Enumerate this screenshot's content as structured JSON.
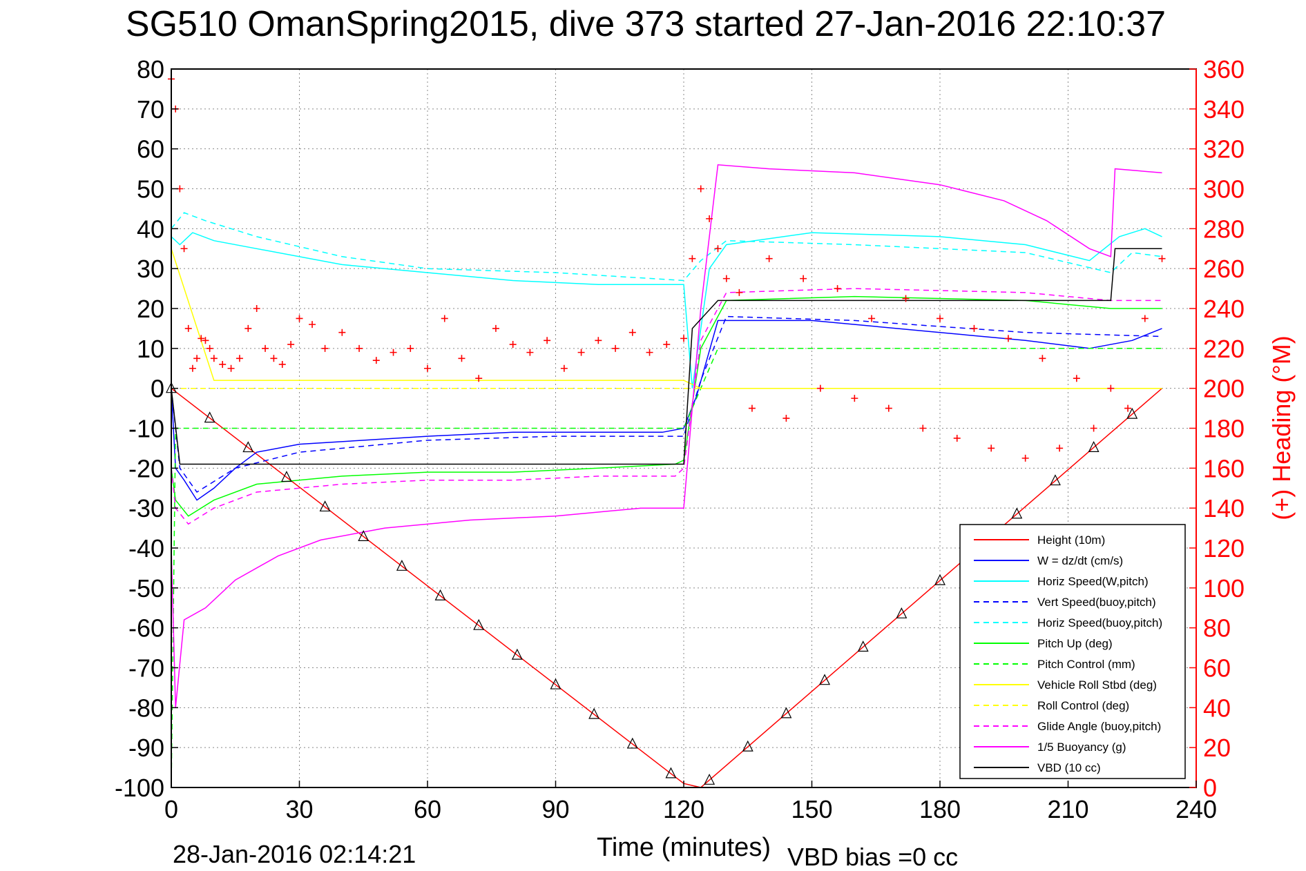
{
  "chart_data": {
    "type": "line",
    "title": "SG510 OmanSpring2015, dive 373 started 27-Jan-2016 22:10:37",
    "xlabel": "Time (minutes)",
    "ylabel_right": "(+) Heading (°M)",
    "footer_date": "28-Jan-2016 02:14:21",
    "footer_bias": "VBD bias =0 cc",
    "xlim": [
      0,
      240
    ],
    "ylim": [
      -100,
      80
    ],
    "ylim_right": [
      0,
      360
    ],
    "x_ticks": [
      "0",
      "30",
      "60",
      "90",
      "120",
      "150",
      "180",
      "210",
      "240"
    ],
    "y_ticks": [
      "80",
      "70",
      "60",
      "50",
      "40",
      "30",
      "20",
      "10",
      "0",
      "-10",
      "-20",
      "-30",
      "-40",
      "-50",
      "-60",
      "-70",
      "-80",
      "-90",
      "-100"
    ],
    "y_right_ticks": [
      "360",
      "340",
      "320",
      "300",
      "280",
      "260",
      "240",
      "220",
      "200",
      "180",
      "160",
      "140",
      "120",
      "100",
      "80",
      "60",
      "40",
      "20",
      "0"
    ],
    "grid": true,
    "legend_position": "bottom-right",
    "series": [
      {
        "name": "Height (10m)",
        "color": "#ff0000",
        "dash": "",
        "x": [
          0,
          120,
          124,
          232
        ],
        "y": [
          0,
          -99,
          -100,
          0
        ]
      },
      {
        "name": "W = dz/dt (cm/s)",
        "color": "#0000ff",
        "dash": "",
        "x": [
          0,
          1,
          3,
          6,
          10,
          15,
          20,
          30,
          45,
          60,
          80,
          100,
          115,
          120,
          123,
          128,
          150,
          180,
          200,
          215,
          225,
          232
        ],
        "y": [
          0,
          -20,
          -23,
          -28,
          -25,
          -20,
          -16,
          -14,
          -13,
          -12,
          -11,
          -11,
          -11,
          -10,
          -2,
          17,
          17,
          14,
          12,
          10,
          12,
          15
        ]
      },
      {
        "name": "Horiz Speed(W,pitch)",
        "color": "#00ffff",
        "dash": "",
        "x": [
          0,
          2,
          5,
          10,
          20,
          40,
          60,
          80,
          100,
          115,
          120,
          122,
          126,
          130,
          150,
          180,
          200,
          215,
          222,
          228,
          232
        ],
        "y": [
          38,
          36,
          39,
          37,
          35,
          31,
          29,
          27,
          26,
          26,
          26,
          0,
          30,
          36,
          39,
          38,
          36,
          32,
          38,
          40,
          38
        ]
      },
      {
        "name": "Vert Speed(buoy,pitch)",
        "color": "#0000ff",
        "dash": "8,6",
        "x": [
          0,
          2,
          6,
          15,
          30,
          60,
          90,
          120,
          124,
          130,
          160,
          200,
          232
        ],
        "y": [
          0,
          -20,
          -26,
          -20,
          -16,
          -13,
          -12,
          -12,
          2,
          18,
          17,
          14,
          13
        ]
      },
      {
        "name": "Horiz Speed(buoy,pitch)",
        "color": "#00ffff",
        "dash": "8,6",
        "x": [
          0,
          3,
          8,
          20,
          40,
          60,
          90,
          120,
          124,
          130,
          160,
          200,
          220,
          225,
          232
        ],
        "y": [
          40,
          44,
          42,
          38,
          33,
          30,
          29,
          27,
          32,
          37,
          36,
          34,
          29,
          34,
          33
        ]
      },
      {
        "name": "Pitch Up (deg)",
        "color": "#00ff00",
        "dash": "",
        "x": [
          0,
          1,
          4,
          10,
          20,
          40,
          60,
          80,
          100,
          118,
          120,
          124,
          130,
          160,
          200,
          220,
          232
        ],
        "y": [
          -20,
          -28,
          -32,
          -28,
          -24,
          -22,
          -21,
          -21,
          -20,
          -19,
          -18,
          10,
          22,
          23,
          22,
          20,
          20
        ]
      },
      {
        "name": "Pitch Control (mm)",
        "color": "#00ff00",
        "dash": "8,6",
        "x": [
          0,
          1,
          2,
          120,
          124,
          128,
          232
        ],
        "y": [
          -100,
          -10,
          -10,
          -10,
          0,
          10,
          10
        ]
      },
      {
        "name": "Vehicle Roll Stbd (deg)",
        "color": "#ffff00",
        "dash": "",
        "x": [
          0,
          10,
          20,
          40,
          60,
          80,
          100,
          120,
          124,
          130,
          160,
          190,
          220,
          232
        ],
        "y": [
          35,
          2,
          2,
          2,
          2,
          2,
          2,
          2,
          0,
          0,
          0,
          0,
          0,
          0
        ]
      },
      {
        "name": "Roll Control (deg)",
        "color": "#ffff00",
        "dash": "8,6",
        "x": [
          0,
          120,
          124,
          232
        ],
        "y": [
          0,
          0,
          0,
          0
        ]
      },
      {
        "name": "Glide Angle (buoy,pitch)",
        "color": "#ff00ff",
        "dash": "8,6",
        "x": [
          0,
          1,
          4,
          10,
          20,
          40,
          60,
          80,
          100,
          118,
          120,
          124,
          130,
          160,
          200,
          220,
          232
        ],
        "y": [
          -20,
          -30,
          -34,
          -30,
          -26,
          -24,
          -23,
          -23,
          -22,
          -22,
          -20,
          12,
          24,
          25,
          24,
          22,
          22
        ]
      },
      {
        "name": "1/5 Buoyancy (g)",
        "color": "#ff00ff",
        "dash": "",
        "x": [
          0,
          1,
          3,
          8,
          15,
          25,
          35,
          50,
          70,
          90,
          110,
          120,
          124,
          128,
          140,
          160,
          180,
          195,
          205,
          215,
          220,
          221,
          232
        ],
        "y": [
          -40,
          -80,
          -58,
          -55,
          -48,
          -42,
          -38,
          -35,
          -33,
          -32,
          -30,
          -30,
          20,
          56,
          55,
          54,
          51,
          47,
          42,
          35,
          33,
          55,
          54
        ]
      },
      {
        "name": "VBD (10 cc)",
        "color": "#000000",
        "dash": "",
        "x": [
          0,
          2,
          120,
          122,
          128,
          220,
          221,
          232
        ],
        "y": [
          0,
          -19,
          -19,
          15,
          22,
          22,
          35,
          35
        ]
      }
    ],
    "heading_points": {
      "name": "(+) Heading (°M)",
      "color": "#ff0000",
      "x": [
        0,
        1,
        2,
        3,
        4,
        5,
        6,
        7,
        8,
        9,
        10,
        12,
        14,
        16,
        18,
        20,
        22,
        24,
        26,
        28,
        30,
        33,
        36,
        40,
        44,
        48,
        52,
        56,
        60,
        64,
        68,
        72,
        76,
        80,
        84,
        88,
        92,
        96,
        100,
        104,
        108,
        112,
        116,
        120,
        122,
        124,
        126,
        128,
        130,
        133,
        136,
        140,
        144,
        148,
        152,
        156,
        160,
        164,
        168,
        172,
        176,
        180,
        184,
        188,
        192,
        196,
        200,
        204,
        208,
        212,
        216,
        220,
        224,
        228,
        232
      ],
      "y": [
        355,
        340,
        300,
        270,
        230,
        210,
        215,
        225,
        224,
        220,
        215,
        212,
        210,
        215,
        230,
        240,
        220,
        215,
        212,
        222,
        235,
        232,
        220,
        228,
        220,
        214,
        218,
        220,
        210,
        235,
        215,
        205,
        230,
        222,
        218,
        224,
        210,
        218,
        224,
        220,
        228,
        218,
        222,
        225,
        265,
        300,
        285,
        270,
        255,
        248,
        190,
        265,
        185,
        255,
        200,
        250,
        195,
        235,
        190,
        245,
        180,
        235,
        175,
        230,
        170,
        225,
        165,
        215,
        170,
        205,
        180,
        200,
        190,
        235,
        265
      ]
    }
  }
}
